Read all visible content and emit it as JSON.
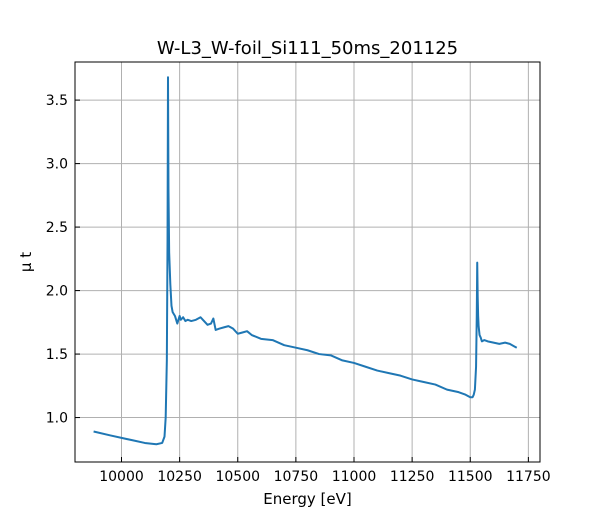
{
  "chart_data": {
    "type": "line",
    "title": "W-L3_W-foil_Si111_50ms_201125",
    "xlabel": "Energy [eV]",
    "ylabel": "μ t",
    "xlim": [
      9800,
      11800
    ],
    "ylim": [
      0.65,
      3.8
    ],
    "xticks": [
      10000,
      10250,
      10500,
      10750,
      11000,
      11250,
      11500,
      11750
    ],
    "yticks": [
      1.0,
      1.5,
      2.0,
      2.5,
      3.0,
      3.5
    ],
    "xtick_labels": [
      "10000",
      "10250",
      "10500",
      "10750",
      "11000",
      "11250",
      "11500",
      "11750"
    ],
    "ytick_labels": [
      "1.0",
      "1.5",
      "2.0",
      "2.5",
      "3.0",
      "3.5"
    ],
    "grid": true,
    "series": [
      {
        "color": "#1f77b4",
        "x": [
          9880,
          9950,
          10000,
          10050,
          10100,
          10150,
          10175,
          10185,
          10190,
          10195,
          10198,
          10200,
          10202,
          10205,
          10210,
          10215,
          10220,
          10230,
          10240,
          10250,
          10255,
          10265,
          10275,
          10285,
          10300,
          10320,
          10340,
          10350,
          10370,
          10385,
          10395,
          10405,
          10420,
          10440,
          10460,
          10480,
          10500,
          10520,
          10540,
          10560,
          10600,
          10650,
          10700,
          10750,
          10800,
          10850,
          10900,
          10950,
          11000,
          11050,
          11100,
          11150,
          11200,
          11250,
          11300,
          11350,
          11400,
          11450,
          11480,
          11500,
          11510,
          11515,
          11520,
          11525,
          11528,
          11530,
          11532,
          11534,
          11536,
          11540,
          11545,
          11550,
          11560,
          11575,
          11600,
          11625,
          11650,
          11670,
          11690,
          11700
        ],
        "y": [
          0.89,
          0.86,
          0.84,
          0.82,
          0.8,
          0.79,
          0.8,
          0.85,
          1.0,
          1.45,
          2.4,
          3.68,
          2.8,
          2.3,
          2.05,
          1.88,
          1.83,
          1.8,
          1.74,
          1.8,
          1.77,
          1.79,
          1.76,
          1.77,
          1.76,
          1.77,
          1.79,
          1.77,
          1.73,
          1.74,
          1.78,
          1.69,
          1.7,
          1.71,
          1.72,
          1.7,
          1.66,
          1.67,
          1.68,
          1.65,
          1.62,
          1.61,
          1.57,
          1.55,
          1.53,
          1.5,
          1.49,
          1.45,
          1.43,
          1.4,
          1.37,
          1.35,
          1.33,
          1.3,
          1.28,
          1.26,
          1.22,
          1.2,
          1.18,
          1.16,
          1.16,
          1.18,
          1.22,
          1.4,
          1.8,
          2.22,
          1.95,
          1.8,
          1.72,
          1.65,
          1.63,
          1.6,
          1.61,
          1.6,
          1.59,
          1.58,
          1.59,
          1.58,
          1.56,
          1.55
        ]
      }
    ]
  }
}
